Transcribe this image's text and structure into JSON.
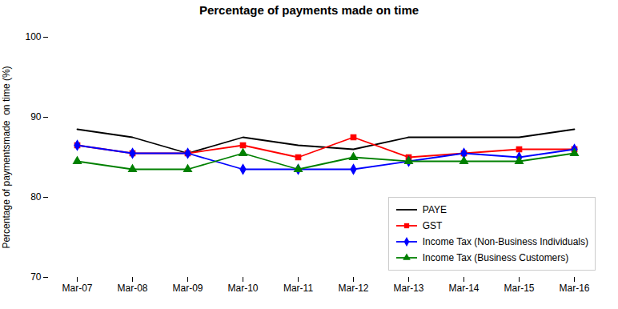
{
  "chart_data": {
    "type": "line",
    "title": "Percentage of payments made on time",
    "ylabel": "Percentage of paymentsmade  on time (%)",
    "categories": [
      "Mar-07",
      "Mar-08",
      "Mar-09",
      "Mar-10",
      "Mar-11",
      "Mar-12",
      "Mar-13",
      "Mar-14",
      "Mar-15",
      "Mar-16"
    ],
    "ylim": [
      70,
      100
    ],
    "yticks": [
      70,
      80,
      90,
      100
    ],
    "grid": false,
    "legend": "lower right",
    "series": [
      {
        "name": "PAYE",
        "color": "#000000",
        "marker": "none",
        "values": [
          88.5,
          87.5,
          85.5,
          87.5,
          86.5,
          86.0,
          87.5,
          87.5,
          87.5,
          88.5
        ]
      },
      {
        "name": "GST",
        "color": "#FF0000",
        "marker": "square",
        "values": [
          86.5,
          85.5,
          85.5,
          86.5,
          85.0,
          87.5,
          85.0,
          85.5,
          86.0,
          86.0
        ]
      },
      {
        "name": "Income Tax (Non-Business Individuals)",
        "color": "#0000FF",
        "marker": "diamond",
        "values": [
          86.5,
          85.5,
          85.5,
          83.5,
          83.5,
          83.5,
          84.5,
          85.5,
          85.0,
          86.0
        ]
      },
      {
        "name": "Income Tax (Business Customers)",
        "color": "#008000",
        "marker": "triangle",
        "values": [
          84.5,
          83.5,
          83.5,
          85.5,
          83.5,
          85.0,
          84.5,
          84.5,
          84.5,
          85.5
        ]
      }
    ]
  }
}
